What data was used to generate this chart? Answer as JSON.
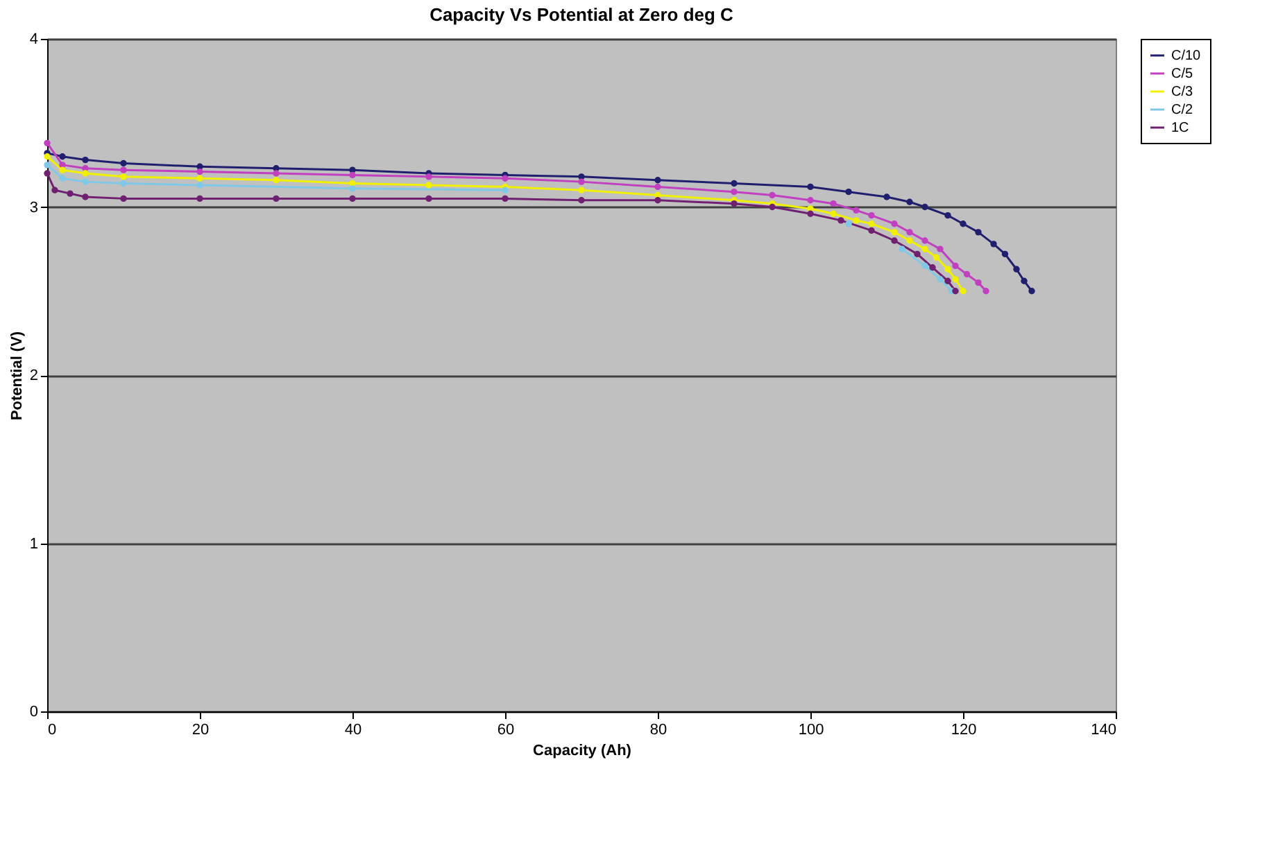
{
  "chart_data": {
    "type": "line",
    "title": "Capacity Vs Potential at Zero deg C",
    "xlabel": "Capacity (Ah)",
    "ylabel": "Potential (V)",
    "xlim": [
      0,
      140
    ],
    "xticks": [
      0,
      20,
      40,
      60,
      80,
      100,
      120,
      140
    ],
    "ylim": [
      0,
      4
    ],
    "yticks": [
      0,
      1,
      2,
      3,
      4
    ],
    "grid": "y",
    "legend": "right",
    "marker": "circle",
    "line_style": "solid",
    "series": [
      {
        "name": "C/10",
        "color": "#1f1f6e",
        "x": [
          0,
          2,
          5,
          10,
          20,
          30,
          40,
          50,
          60,
          70,
          80,
          90,
          100,
          105,
          110,
          113,
          115,
          118,
          120,
          122,
          124,
          125.5,
          127,
          128,
          129
        ],
        "values": [
          3.32,
          3.3,
          3.28,
          3.26,
          3.24,
          3.23,
          3.22,
          3.2,
          3.19,
          3.18,
          3.16,
          3.14,
          3.12,
          3.09,
          3.06,
          3.03,
          3.0,
          2.95,
          2.9,
          2.85,
          2.78,
          2.72,
          2.63,
          2.56,
          2.5
        ]
      },
      {
        "name": "C/5",
        "color": "#c040c0",
        "x": [
          0,
          2,
          5,
          10,
          20,
          30,
          40,
          50,
          60,
          70,
          80,
          90,
          95,
          100,
          103,
          106,
          108,
          111,
          113,
          115,
          117,
          119,
          120.5,
          122,
          123
        ],
        "values": [
          3.38,
          3.25,
          3.23,
          3.22,
          3.21,
          3.2,
          3.19,
          3.18,
          3.17,
          3.15,
          3.12,
          3.09,
          3.07,
          3.04,
          3.02,
          2.98,
          2.95,
          2.9,
          2.85,
          2.8,
          2.75,
          2.65,
          2.6,
          2.55,
          2.5
        ]
      },
      {
        "name": "C/3",
        "color": "#f0f000",
        "x": [
          0,
          2,
          5,
          10,
          20,
          30,
          40,
          50,
          60,
          70,
          80,
          90,
          95,
          100,
          103,
          106,
          108,
          111,
          113,
          115,
          116.5,
          118,
          119,
          120
        ],
        "values": [
          3.3,
          3.22,
          3.2,
          3.18,
          3.17,
          3.16,
          3.14,
          3.13,
          3.12,
          3.1,
          3.07,
          3.04,
          3.02,
          2.99,
          2.96,
          2.92,
          2.9,
          2.85,
          2.8,
          2.75,
          2.7,
          2.63,
          2.57,
          2.5
        ]
      },
      {
        "name": "C/2",
        "color": "#80c8e8",
        "x": [
          0,
          2,
          5,
          10,
          20,
          40,
          60,
          80,
          90,
          95,
          100,
          105,
          108,
          112,
          115,
          117,
          118.5
        ],
        "values": [
          3.25,
          3.17,
          3.15,
          3.14,
          3.13,
          3.11,
          3.1,
          null,
          null,
          null,
          null,
          2.9,
          null,
          2.75,
          2.65,
          2.57,
          2.5
        ]
      },
      {
        "name": "1C",
        "color": "#702070",
        "x": [
          0,
          1,
          3,
          5,
          10,
          20,
          30,
          40,
          50,
          60,
          70,
          80,
          90,
          95,
          100,
          104,
          108,
          111,
          114,
          116,
          118,
          119
        ],
        "values": [
          3.2,
          3.1,
          3.08,
          3.06,
          3.05,
          3.05,
          3.05,
          3.05,
          3.05,
          3.05,
          3.04,
          3.04,
          3.02,
          3.0,
          2.96,
          2.92,
          2.86,
          2.8,
          2.72,
          2.64,
          2.56,
          2.5
        ]
      }
    ]
  }
}
